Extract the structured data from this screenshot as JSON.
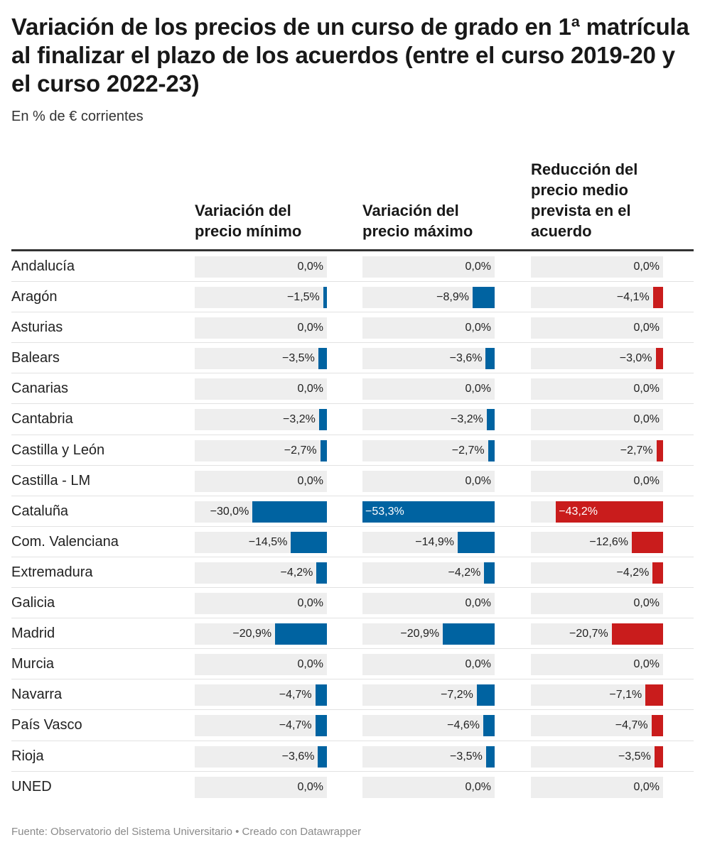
{
  "title": "Variación de los precios de un curso de grado en 1ª matrícula al finalizar el plazo de los acuerdos (entre el curso 2019-20 y el curso 2022-23)",
  "subtitle": "En % de € corrientes",
  "source": "Fuente: Observatorio del Sistema Universitario • Creado con Datawrapper",
  "colors": {
    "col0": "#0063a1",
    "col1": "#0063a1",
    "col2": "#c91c1c",
    "track": "#eeeeee"
  },
  "chart_data": {
    "type": "bar",
    "title": "Variación de los precios de un curso de grado en 1ª matrícula al finalizar el plazo de los acuerdos (entre el curso 2019-20 y el curso 2022-23)",
    "subtitle": "En % de € corrientes",
    "unit": "%",
    "xlim": [
      -53.3,
      0
    ],
    "categories": [
      "Andalucía",
      "Aragón",
      "Asturias",
      "Balears",
      "Canarias",
      "Cantabria",
      "Castilla y León",
      "Castilla - LM",
      "Cataluña",
      "Com. Valenciana",
      "Extremadura",
      "Galicia",
      "Madrid",
      "Murcia",
      "Navarra",
      "País Vasco",
      "Rioja",
      "UNED"
    ],
    "series": [
      {
        "name": "Variación del precio mínimo",
        "values": [
          0.0,
          -1.5,
          0.0,
          -3.5,
          0.0,
          -3.2,
          -2.7,
          0.0,
          -30.0,
          -14.5,
          -4.2,
          0.0,
          -20.9,
          0.0,
          -4.7,
          -4.7,
          -3.6,
          0.0
        ],
        "labels": [
          "0,0%",
          "−1,5%",
          "0,0%",
          "−3,5%",
          "0,0%",
          "−3,2%",
          "−2,7%",
          "0,0%",
          "−30,0%",
          "−14,5%",
          "−4,2%",
          "0,0%",
          "−20,9%",
          "0,0%",
          "−4,7%",
          "−4,7%",
          "−3,6%",
          "0,0%"
        ]
      },
      {
        "name": "Variación del precio máximo",
        "values": [
          0.0,
          -8.9,
          0.0,
          -3.6,
          0.0,
          -3.2,
          -2.7,
          0.0,
          -53.3,
          -14.9,
          -4.2,
          0.0,
          -20.9,
          0.0,
          -7.2,
          -4.6,
          -3.5,
          0.0
        ],
        "labels": [
          "0,0%",
          "−8,9%",
          "0,0%",
          "−3,6%",
          "0,0%",
          "−3,2%",
          "−2,7%",
          "0,0%",
          "−53,3%",
          "−14,9%",
          "−4,2%",
          "0,0%",
          "−20,9%",
          "0,0%",
          "−7,2%",
          "−4,6%",
          "−3,5%",
          "0,0%"
        ]
      },
      {
        "name": "Reducción del precio medio prevista en el acuerdo",
        "values": [
          0.0,
          -4.1,
          0.0,
          -3.0,
          0.0,
          0.0,
          -2.7,
          0.0,
          -43.2,
          -12.6,
          -4.2,
          0.0,
          -20.7,
          0.0,
          -7.1,
          -4.7,
          -3.5,
          0.0
        ],
        "labels": [
          "0,0%",
          "−4,1%",
          "0,0%",
          "−3,0%",
          "0,0%",
          "0,0%",
          "−2,7%",
          "0,0%",
          "−43,2%",
          "−12,6%",
          "−4,2%",
          "0,0%",
          "−20,7%",
          "0,0%",
          "−7,1%",
          "−4,7%",
          "−3,5%",
          "0,0%"
        ]
      }
    ]
  }
}
